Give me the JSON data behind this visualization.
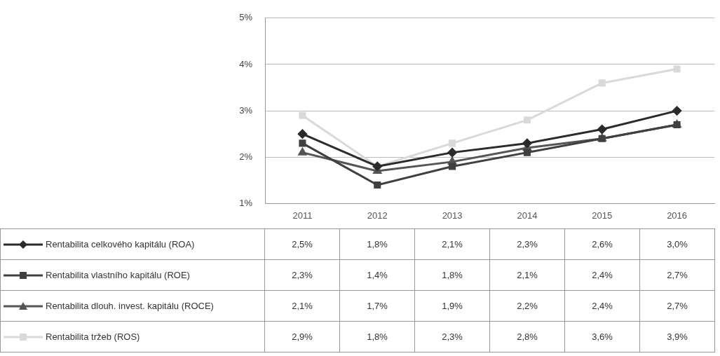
{
  "chart_data": {
    "type": "line",
    "categories": [
      "2011",
      "2012",
      "2013",
      "2014",
      "2015",
      "2016"
    ],
    "series": [
      {
        "name": "Rentabilita celkového kapitálu (ROA)",
        "color": "#2b2b2b",
        "marker": "diamond",
        "values": [
          2.5,
          1.8,
          2.1,
          2.3,
          2.6,
          3.0
        ],
        "value_labels": [
          "2,5%",
          "1,8%",
          "2,1%",
          "2,3%",
          "2,6%",
          "3,0%"
        ]
      },
      {
        "name": "Rentabilita vlastního kapitálu (ROE)",
        "color": "#404040",
        "marker": "square",
        "values": [
          2.3,
          1.4,
          1.8,
          2.1,
          2.4,
          2.7
        ],
        "value_labels": [
          "2,3%",
          "1,4%",
          "1,8%",
          "2,1%",
          "2,4%",
          "2,7%"
        ]
      },
      {
        "name": "Rentabilita dlouh. invest. kapitálu (ROCE)",
        "color": "#555555",
        "marker": "triangle",
        "values": [
          2.1,
          1.7,
          1.9,
          2.2,
          2.4,
          2.7
        ],
        "value_labels": [
          "2,1%",
          "1,7%",
          "1,9%",
          "2,2%",
          "2,4%",
          "2,7%"
        ]
      },
      {
        "name": "Rentabilita tržeb (ROS)",
        "color": "#d9d9d9",
        "marker": "square",
        "values": [
          2.9,
          1.8,
          2.3,
          2.8,
          3.6,
          3.9
        ],
        "value_labels": [
          "2,9%",
          "1,8%",
          "2,3%",
          "2,8%",
          "3,6%",
          "3,9%"
        ]
      }
    ],
    "ylim": [
      1,
      5
    ],
    "yticks": [
      {
        "value": 1,
        "label": "1%"
      },
      {
        "value": 2,
        "label": "2%"
      },
      {
        "value": 3,
        "label": "3%"
      },
      {
        "value": 4,
        "label": "4%"
      },
      {
        "value": 5,
        "label": "5%"
      }
    ],
    "grid": "y",
    "legend": "bottom left"
  }
}
